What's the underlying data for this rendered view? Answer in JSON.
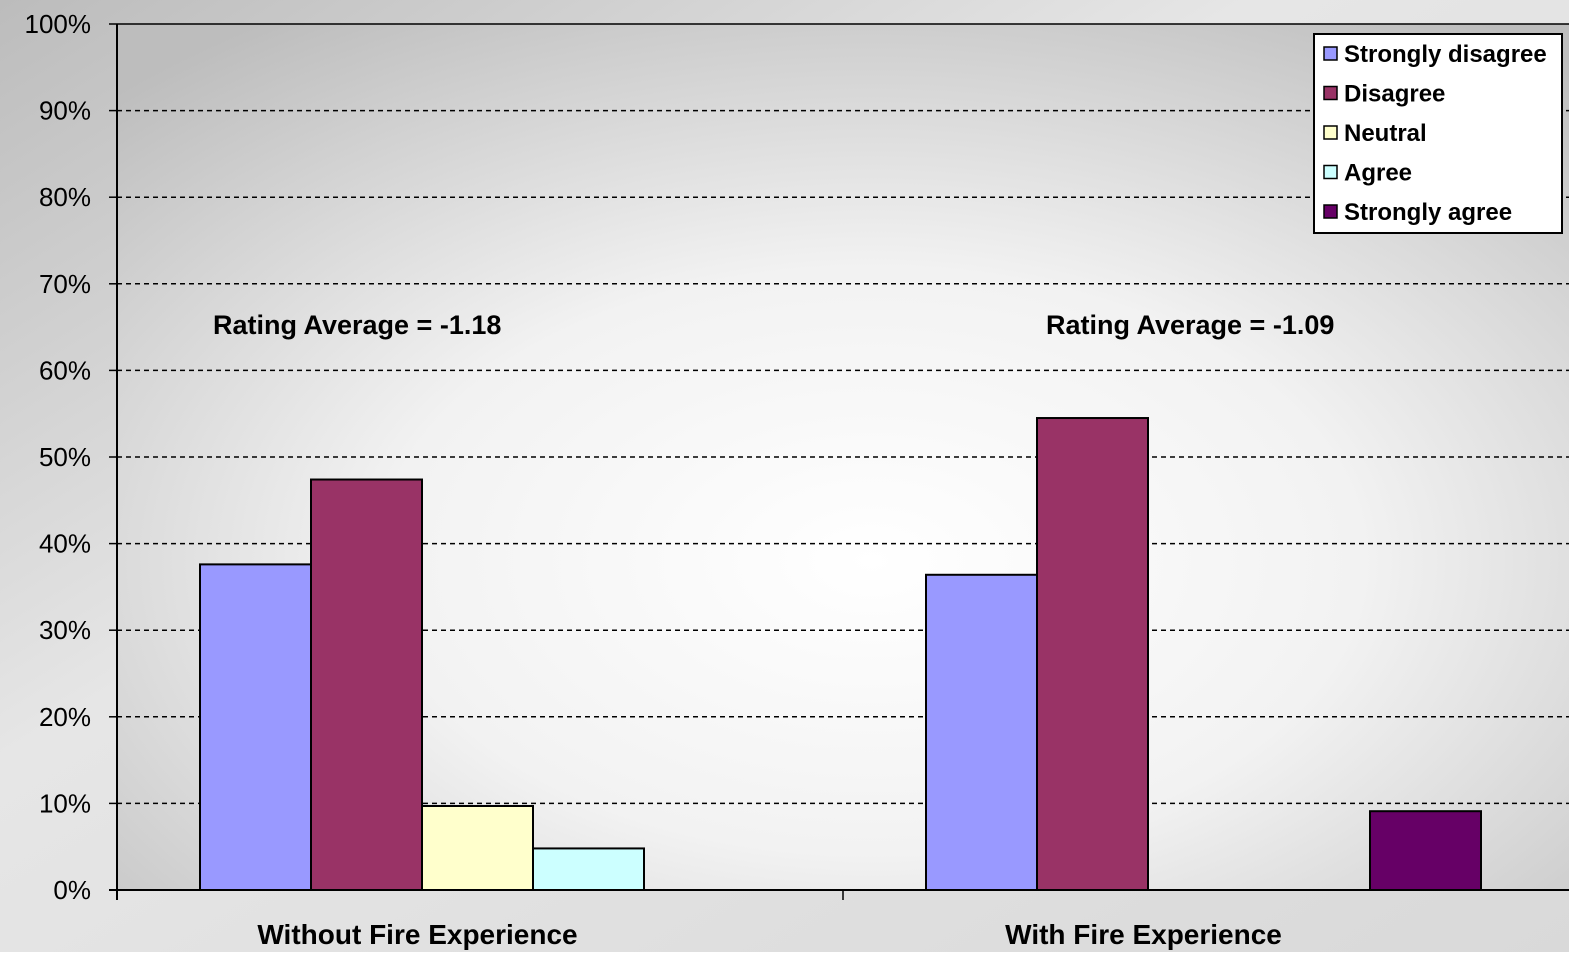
{
  "chart_data": {
    "type": "bar",
    "title": "",
    "xlabel": "",
    "ylabel": "",
    "ylim": [
      0,
      100
    ],
    "y_ticks": [
      "0%",
      "10%",
      "20%",
      "30%",
      "40%",
      "50%",
      "60%",
      "70%",
      "80%",
      "90%",
      "100%"
    ],
    "grid": "horizontal-dashed",
    "legend_position": "top-right",
    "categories": [
      "Without Fire Experience",
      "With Fire Experience"
    ],
    "series": [
      {
        "name": "Strongly disagree",
        "color": "#9999FF",
        "values": [
          37.6,
          36.4
        ]
      },
      {
        "name": "Disagree",
        "color": "#993366",
        "values": [
          47.4,
          54.5
        ]
      },
      {
        "name": "Neutral",
        "color": "#FFFFCC",
        "values": [
          9.7,
          0
        ]
      },
      {
        "name": "Agree",
        "color": "#CCFFFF",
        "values": [
          4.8,
          0
        ]
      },
      {
        "name": "Strongly agree",
        "color": "#660066",
        "values": [
          0,
          9.1
        ]
      }
    ],
    "annotations": [
      "Rating Average = -1.18",
      "Rating Average = -1.09"
    ]
  }
}
